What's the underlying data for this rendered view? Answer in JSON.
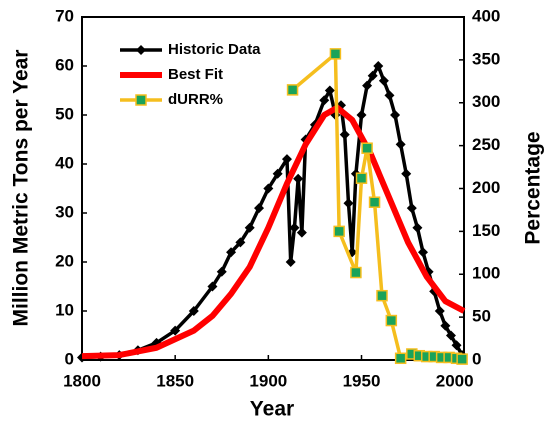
{
  "chart_data": {
    "type": "line",
    "x_label": "Year",
    "y_label": "Million Metric Tons per Year",
    "y2_label": "Percentage",
    "xlim": [
      1800,
      2005
    ],
    "xticks": [
      1800,
      1850,
      1900,
      1950,
      2000
    ],
    "ylim": [
      0,
      70
    ],
    "yticks": [
      0,
      10,
      20,
      30,
      40,
      50,
      60,
      70
    ],
    "y2lim": [
      0,
      400
    ],
    "y2ticks": [
      0,
      50,
      100,
      150,
      200,
      250,
      300,
      350,
      400
    ],
    "grid": false,
    "legend": "upper left",
    "series": [
      {
        "name": "Historic Data",
        "color": "#000000",
        "marker": "diamond",
        "x": [
          1800,
          1810,
          1820,
          1830,
          1840,
          1850,
          1860,
          1870,
          1875,
          1880,
          1885,
          1890,
          1895,
          1900,
          1905,
          1910,
          1912,
          1914,
          1916,
          1918,
          1920,
          1925,
          1930,
          1933,
          1936,
          1939,
          1941,
          1943,
          1945,
          1947,
          1950,
          1953,
          1956,
          1959,
          1962,
          1965,
          1968,
          1971,
          1974,
          1977,
          1980,
          1983,
          1986,
          1989,
          1992,
          1995,
          1998,
          2001,
          2004
        ],
        "values": [
          0.5,
          0.7,
          1,
          2,
          3.5,
          6,
          10,
          15,
          18,
          22,
          24,
          27,
          31,
          35,
          38,
          41,
          20,
          27,
          37,
          26,
          45,
          48,
          53,
          55,
          50,
          52,
          46,
          32,
          22,
          38,
          50,
          56,
          58,
          60,
          57,
          54,
          50,
          44,
          38,
          31,
          27,
          22,
          18,
          14,
          10,
          7,
          5,
          3,
          1
        ]
      },
      {
        "name": "Best Fit",
        "color": "#ff0000",
        "marker": "none",
        "x": [
          1800,
          1820,
          1840,
          1860,
          1870,
          1880,
          1890,
          1900,
          1910,
          1920,
          1930,
          1937,
          1945,
          1955,
          1965,
          1975,
          1985,
          1995,
          2005
        ],
        "values": [
          0.8,
          1,
          2.5,
          6,
          9,
          13.5,
          19,
          27,
          36,
          44,
          50,
          51.5,
          49,
          42,
          33,
          24,
          17,
          12,
          10
        ]
      },
      {
        "name": "dURR%",
        "color": "#f5be1e",
        "marker": "square",
        "marker_color": "#1aa35a",
        "axis": "y2",
        "x": [
          1913,
          1936,
          1938,
          1947,
          1950,
          1953,
          1957,
          1961,
          1966,
          1971,
          1977,
          1981,
          1985,
          1989,
          1993,
          1997,
          2001,
          2004
        ],
        "values": [
          315,
          357,
          150,
          102,
          212,
          247,
          184,
          75,
          46,
          2,
          7,
          5,
          4,
          4,
          3,
          3,
          2,
          1
        ]
      }
    ]
  }
}
